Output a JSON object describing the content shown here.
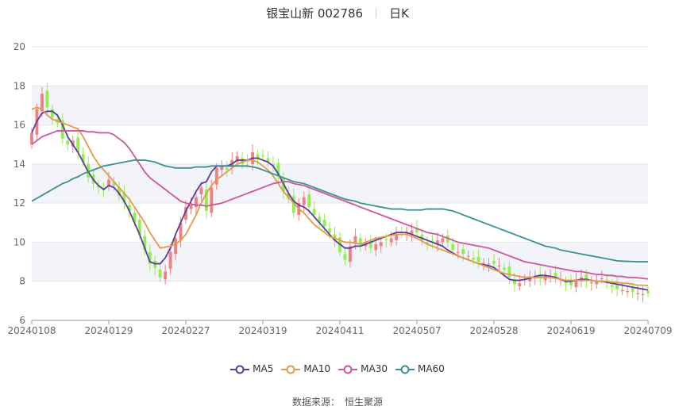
{
  "header": {
    "stock_title": "银宝山新 002786",
    "period": "日K"
  },
  "source": {
    "label": "数据来源：",
    "provider": "恒生聚源"
  },
  "colors": {
    "up": "#f08080",
    "down": "#90ee50",
    "ma5": "#5b3c9e",
    "ma10": "#e39a4a",
    "ma30": "#d0549e",
    "ma60": "#3b9090"
  },
  "chart_data": {
    "type": "candlestick",
    "ylim": [
      6,
      20
    ],
    "yticks": [
      6,
      8,
      10,
      12,
      14,
      16,
      18,
      20
    ],
    "xticks": [
      "20240108",
      "20240129",
      "20240227",
      "20240319",
      "20240411",
      "20240507",
      "20240528",
      "20240619",
      "20240709"
    ],
    "xtick_index": [
      0,
      15,
      30,
      45,
      60,
      75,
      90,
      105,
      120
    ],
    "n_points": 121,
    "grid": true,
    "legend": [
      "MA5",
      "MA10",
      "MA30",
      "MA60"
    ],
    "legend_position": "bottom",
    "candle_closes": [
      15.6,
      16.8,
      17.6,
      16.9,
      16.4,
      16.1,
      15.3,
      15.0,
      15.2,
      14.6,
      14.1,
      13.3,
      13.0,
      12.8,
      12.7,
      13.2,
      12.9,
      12.4,
      12.0,
      11.6,
      11.0,
      10.4,
      9.6,
      8.9,
      8.7,
      8.2,
      8.5,
      9.5,
      10.2,
      11.0,
      11.8,
      11.9,
      12.3,
      12.8,
      11.6,
      12.8,
      13.8,
      13.9,
      13.7,
      14.2,
      14.4,
      14.0,
      14.1,
      14.6,
      14.3,
      14.4,
      14.1,
      13.9,
      13.4,
      12.6,
      12.2,
      11.5,
      12.0,
      12.3,
      11.8,
      11.4,
      11.0,
      10.8,
      10.5,
      10.1,
      9.5,
      9.1,
      9.8,
      10.3,
      9.9,
      9.9,
      9.7,
      9.9,
      10.0,
      10.1,
      10.2,
      10.4,
      10.5,
      10.5,
      10.6,
      10.5,
      10.1,
      9.9,
      10.0,
      10.1,
      10.2,
      10.0,
      9.6,
      9.5,
      9.4,
      9.3,
      9.1,
      9.0,
      8.95,
      8.9,
      8.9,
      8.8,
      8.6,
      8.2,
      7.85,
      7.9,
      8.1,
      8.25,
      8.2,
      8.15,
      8.3,
      8.3,
      8.2,
      8.1,
      7.9,
      7.8,
      8.1,
      8.2,
      8.0,
      7.95,
      8.0,
      8.15,
      7.9,
      7.7,
      7.6,
      7.55,
      7.5,
      7.45,
      7.4,
      7.35,
      7.4
    ],
    "series": [
      {
        "name": "MA5",
        "values": [
          15.6,
          16.2,
          16.6,
          16.7,
          16.7,
          16.5,
          16.0,
          15.4,
          15.0,
          14.6,
          14.1,
          13.6,
          13.2,
          12.9,
          12.7,
          12.9,
          12.8,
          12.5,
          12.1,
          11.6,
          11.0,
          10.4,
          9.7,
          9.0,
          8.9,
          8.9,
          9.2,
          9.7,
          10.4,
          11.0,
          11.6,
          12.1,
          12.6,
          13.0,
          13.1,
          13.6,
          13.9,
          13.9,
          13.9,
          14.0,
          14.2,
          14.2,
          14.2,
          14.3,
          14.3,
          14.2,
          14.1,
          13.9,
          13.5,
          13.0,
          12.5,
          12.1,
          11.9,
          11.8,
          11.6,
          11.3,
          11.0,
          10.7,
          10.4,
          10.1,
          9.9,
          9.7,
          9.7,
          9.8,
          9.8,
          9.9,
          10.0,
          10.1,
          10.2,
          10.3,
          10.4,
          10.5,
          10.5,
          10.5,
          10.4,
          10.3,
          10.2,
          10.1,
          10.0,
          9.9,
          9.8,
          9.6,
          9.45,
          9.3,
          9.2,
          9.1,
          9.0,
          8.9,
          8.85,
          8.8,
          8.7,
          8.5,
          8.3,
          8.1,
          8.05,
          8.05,
          8.1,
          8.15,
          8.25,
          8.3,
          8.3,
          8.25,
          8.2,
          8.1,
          8.0,
          8.0,
          8.05,
          8.1,
          8.1,
          8.05,
          8.0,
          8.0,
          7.95,
          7.9,
          7.85,
          7.8,
          7.75,
          7.7,
          7.65,
          7.6,
          7.55
        ]
      },
      {
        "name": "MA10",
        "values": [
          16.8,
          16.9,
          16.8,
          16.5,
          16.3,
          16.2,
          16.1,
          16.0,
          15.9,
          15.8,
          15.4,
          14.9,
          14.4,
          14.0,
          13.7,
          13.4,
          13.1,
          12.8,
          12.5,
          12.2,
          11.8,
          11.4,
          11.0,
          10.5,
          10.1,
          9.7,
          9.75,
          9.8,
          9.9,
          10.1,
          10.4,
          10.9,
          11.4,
          12.0,
          12.5,
          12.9,
          13.2,
          13.4,
          13.6,
          13.8,
          14.0,
          14.1,
          14.2,
          14.2,
          14.1,
          13.9,
          13.7,
          13.4,
          13.0,
          12.6,
          12.3,
          12.0,
          11.7,
          11.5,
          11.2,
          10.9,
          10.7,
          10.5,
          10.3,
          10.2,
          10.1,
          10.0,
          10.0,
          9.95,
          9.9,
          10.0,
          10.1,
          10.2,
          10.25,
          10.3,
          10.35,
          10.4,
          10.4,
          10.4,
          10.3,
          10.2,
          10.05,
          9.9,
          9.8,
          9.7,
          9.6,
          9.5,
          9.4,
          9.3,
          9.2,
          9.1,
          9.0,
          8.9,
          8.8,
          8.7,
          8.6,
          8.5,
          8.4,
          8.35,
          8.3,
          8.25,
          8.2,
          8.2,
          8.2,
          8.2,
          8.2,
          8.2,
          8.15,
          8.1,
          8.05,
          8.05,
          8.05,
          8.05,
          8.05,
          8.05,
          8.0,
          8.0,
          8.0,
          7.95,
          7.95,
          7.9,
          7.9,
          7.85,
          7.8,
          7.8,
          7.78
        ]
      },
      {
        "name": "MA30",
        "values": [
          15.0,
          15.2,
          15.4,
          15.5,
          15.6,
          15.7,
          15.7,
          15.7,
          15.7,
          15.7,
          15.7,
          15.65,
          15.65,
          15.6,
          15.6,
          15.6,
          15.5,
          15.3,
          15.1,
          14.8,
          14.4,
          14.0,
          13.6,
          13.3,
          13.1,
          12.9,
          12.7,
          12.5,
          12.3,
          12.1,
          12.0,
          11.95,
          11.9,
          11.9,
          11.85,
          11.9,
          11.95,
          12.0,
          12.1,
          12.2,
          12.3,
          12.4,
          12.5,
          12.6,
          12.7,
          12.8,
          12.9,
          13.0,
          13.05,
          13.1,
          13.1,
          13.0,
          12.95,
          12.9,
          12.8,
          12.7,
          12.6,
          12.5,
          12.4,
          12.3,
          12.2,
          12.1,
          12.0,
          11.9,
          11.8,
          11.7,
          11.6,
          11.5,
          11.4,
          11.3,
          11.2,
          11.1,
          11.0,
          10.9,
          10.8,
          10.7,
          10.6,
          10.5,
          10.45,
          10.4,
          10.3,
          10.2,
          10.1,
          10.0,
          9.95,
          9.9,
          9.85,
          9.8,
          9.75,
          9.7,
          9.6,
          9.5,
          9.4,
          9.3,
          9.2,
          9.1,
          9.0,
          8.95,
          8.9,
          8.85,
          8.8,
          8.75,
          8.7,
          8.65,
          8.6,
          8.55,
          8.5,
          8.5,
          8.45,
          8.4,
          8.35,
          8.35,
          8.3,
          8.3,
          8.25,
          8.25,
          8.2,
          8.2,
          8.18,
          8.15,
          8.12
        ]
      },
      {
        "name": "MA60",
        "values": [
          12.1,
          12.25,
          12.4,
          12.55,
          12.7,
          12.85,
          13.0,
          13.1,
          13.25,
          13.35,
          13.5,
          13.6,
          13.7,
          13.8,
          13.9,
          13.95,
          14.0,
          14.05,
          14.1,
          14.15,
          14.2,
          14.2,
          14.2,
          14.15,
          14.1,
          14.0,
          13.9,
          13.85,
          13.8,
          13.8,
          13.8,
          13.8,
          13.85,
          13.85,
          13.85,
          13.9,
          13.9,
          13.9,
          13.9,
          13.9,
          13.9,
          13.9,
          13.9,
          13.85,
          13.8,
          13.7,
          13.6,
          13.5,
          13.4,
          13.3,
          13.2,
          13.1,
          13.05,
          13.0,
          12.9,
          12.8,
          12.7,
          12.6,
          12.5,
          12.4,
          12.3,
          12.2,
          12.15,
          12.1,
          12.0,
          11.95,
          11.9,
          11.85,
          11.8,
          11.75,
          11.7,
          11.7,
          11.7,
          11.65,
          11.65,
          11.65,
          11.65,
          11.7,
          11.7,
          11.7,
          11.7,
          11.65,
          11.6,
          11.5,
          11.4,
          11.3,
          11.2,
          11.1,
          11.0,
          10.9,
          10.8,
          10.7,
          10.6,
          10.5,
          10.4,
          10.3,
          10.2,
          10.1,
          10.0,
          9.9,
          9.8,
          9.75,
          9.7,
          9.6,
          9.55,
          9.5,
          9.45,
          9.4,
          9.35,
          9.3,
          9.25,
          9.2,
          9.15,
          9.1,
          9.05,
          9.03,
          9.02,
          9.01,
          9.0,
          9.0,
          9.0
        ]
      }
    ]
  }
}
